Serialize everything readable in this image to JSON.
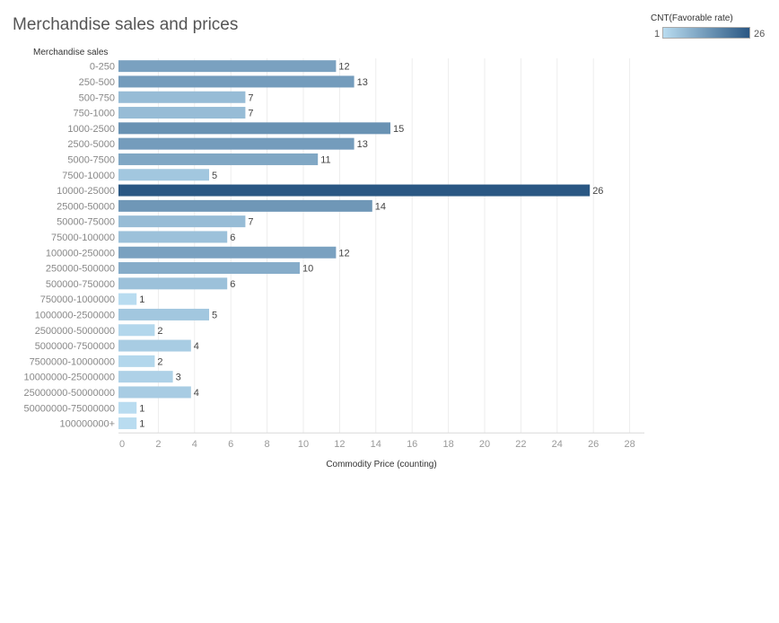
{
  "chart_data": {
    "type": "bar",
    "orientation": "horizontal",
    "title": "Merchandise sales and prices",
    "ylabel": "Merchandise sales",
    "xlabel": "Commodity Price (counting)",
    "categories": [
      "0-250",
      "250-500",
      "500-750",
      "750-1000",
      "1000-2500",
      "2500-5000",
      "5000-7500",
      "7500-10000",
      "10000-25000",
      "25000-50000",
      "50000-75000",
      "75000-100000",
      "100000-250000",
      "250000-500000",
      "500000-750000",
      "750000-1000000",
      "1000000-2500000",
      "2500000-5000000",
      "5000000-7500000",
      "7500000-10000000",
      "10000000-25000000",
      "25000000-50000000",
      "50000000-75000000",
      "100000000+"
    ],
    "values": [
      12,
      13,
      7,
      7,
      15,
      13,
      11,
      5,
      26,
      14,
      7,
      6,
      12,
      10,
      6,
      1,
      5,
      2,
      4,
      2,
      3,
      4,
      1,
      1
    ],
    "xlim": [
      0,
      29
    ],
    "xticks": [
      0,
      2,
      4,
      6,
      8,
      10,
      12,
      14,
      16,
      18,
      20,
      22,
      24,
      26,
      28
    ],
    "grid": true,
    "color_legend": {
      "title": "CNT(Favorable rate)",
      "min": 1,
      "max": 26,
      "min_color": "#b9dcf0",
      "max_color": "#2a5783"
    }
  }
}
